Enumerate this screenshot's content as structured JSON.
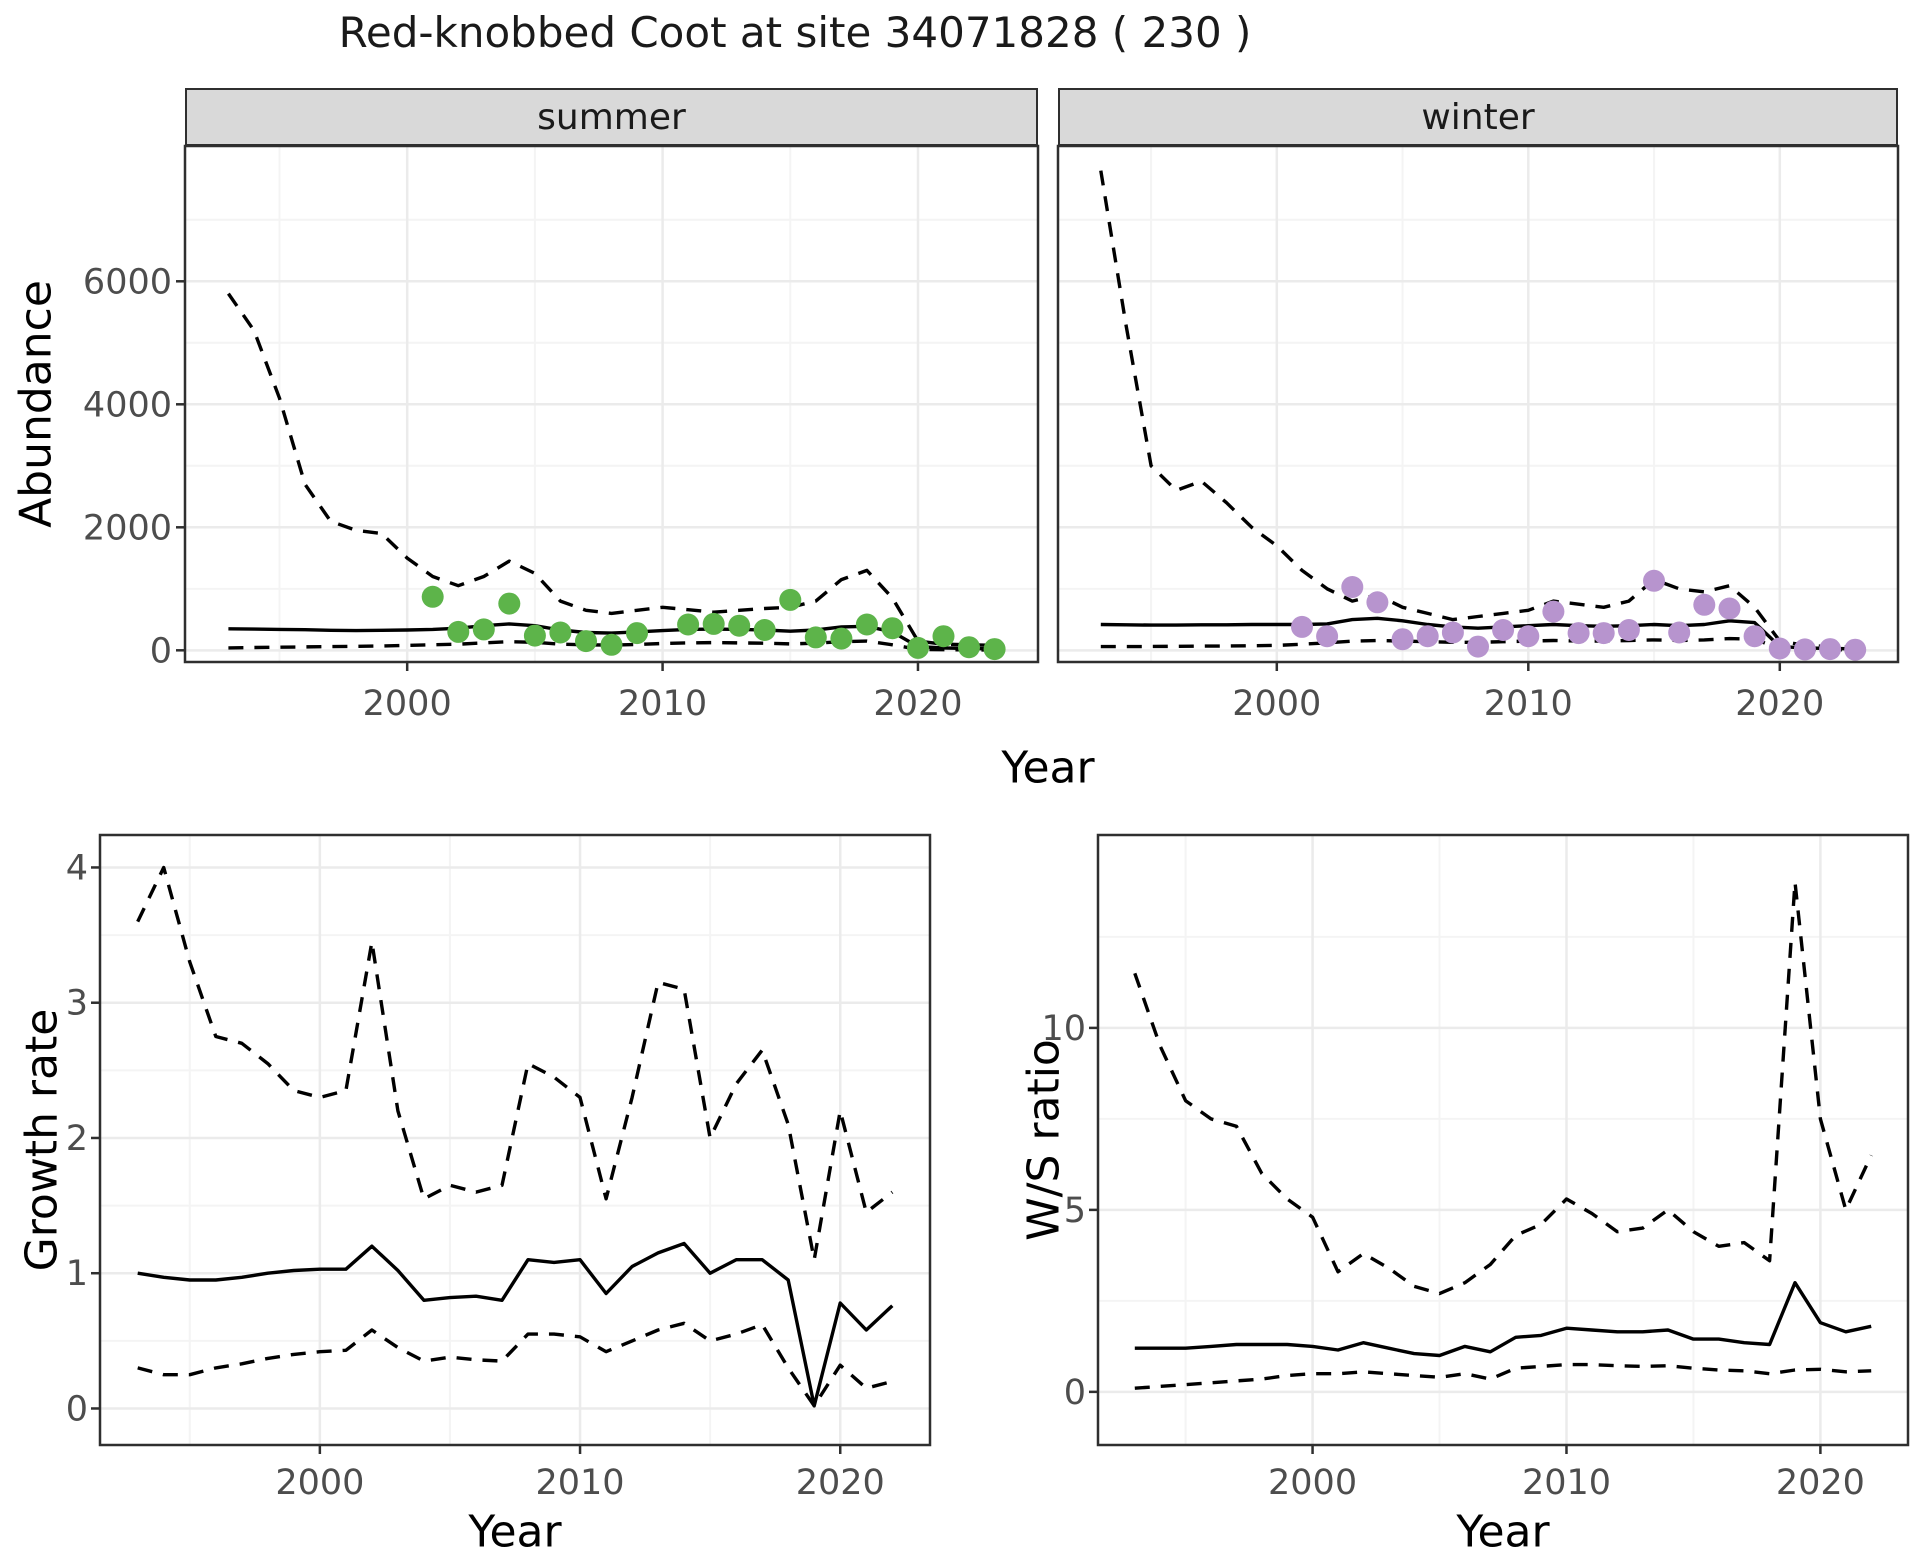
{
  "title": "Red-knobbed Coot at site 34071828 ( 230 )",
  "facets": {
    "summer_label": "summer",
    "winter_label": "winter"
  },
  "axes": {
    "abundance_label": "Abundance",
    "year_label": "Year",
    "growth_label": "Growth rate",
    "ratio_label": "W/S ratio"
  },
  "colors": {
    "summer_points": "#5db44a",
    "winter_points": "#b794ce",
    "line": "#000000",
    "grid_major": "#ebebeb",
    "grid_minor": "#f4f4f4",
    "panel_border": "#2f2f2f",
    "strip_bg": "#d9d9d9",
    "axis_text": "#4d4d4d",
    "title_text": "#1a1a1a"
  },
  "chart_data": [
    {
      "id": "summer_abundance",
      "type": "line",
      "facet": "summer",
      "xlabel": "Year",
      "ylabel": "Abundance",
      "xlim": [
        1991.3,
        2024.7
      ],
      "ylim": [
        -190,
        8200
      ],
      "xticks": {
        "values": [
          2000,
          2010,
          2020
        ],
        "labels": [
          "2000",
          "2010",
          "2020"
        ]
      },
      "yticks": {
        "values": [
          0,
          2000,
          4000,
          6000
        ],
        "labels": [
          "0",
          "2000",
          "4000",
          "6000"
        ]
      },
      "minor_x": [
        1995,
        2005,
        2015
      ],
      "minor_y": [
        1000,
        3000,
        5000,
        7000
      ],
      "x": [
        1993,
        1994,
        1995,
        1996,
        1997,
        1998,
        1999,
        2000,
        2001,
        2002,
        2003,
        2004,
        2005,
        2006,
        2007,
        2008,
        2009,
        2010,
        2011,
        2012,
        2013,
        2014,
        2015,
        2016,
        2017,
        2018,
        2019,
        2020,
        2021,
        2022,
        2023
      ],
      "series": [
        {
          "name": "upper_95ci",
          "style": "dashed",
          "values": [
            5800,
            5200,
            4100,
            2700,
            2100,
            1950,
            1900,
            1500,
            1200,
            1050,
            1200,
            1450,
            1250,
            800,
            650,
            600,
            650,
            700,
            660,
            620,
            650,
            680,
            700,
            800,
            1150,
            1300,
            850,
            150,
            100,
            90,
            80
          ]
        },
        {
          "name": "median",
          "style": "solid",
          "values": [
            350,
            345,
            340,
            335,
            325,
            320,
            325,
            330,
            340,
            360,
            400,
            430,
            400,
            330,
            290,
            280,
            300,
            320,
            340,
            345,
            340,
            330,
            310,
            330,
            380,
            390,
            300,
            60,
            40,
            30,
            25
          ]
        },
        {
          "name": "lower_95ci",
          "style": "dashed",
          "values": [
            40,
            45,
            50,
            55,
            60,
            65,
            70,
            80,
            90,
            100,
            120,
            140,
            130,
            100,
            90,
            85,
            95,
            110,
            120,
            125,
            120,
            115,
            105,
            115,
            140,
            150,
            90,
            15,
            10,
            8,
            5
          ]
        }
      ],
      "points": {
        "name": "observed_counts_summer",
        "color": "#5db44a",
        "x": [
          2001,
          2002,
          2003,
          2004,
          2005,
          2006,
          2007,
          2008,
          2009,
          2011,
          2012,
          2013,
          2014,
          2015,
          2016,
          2017,
          2018,
          2019,
          2020,
          2021,
          2022,
          2023
        ],
        "y": [
          870,
          300,
          340,
          760,
          240,
          290,
          150,
          90,
          280,
          420,
          430,
          400,
          330,
          820,
          210,
          190,
          420,
          360,
          40,
          230,
          50,
          20
        ]
      }
    },
    {
      "id": "winter_abundance",
      "type": "line",
      "facet": "winter",
      "xlabel": "Year",
      "ylabel": "Abundance",
      "xlim": [
        1991.3,
        2024.7
      ],
      "ylim": [
        -190,
        8200
      ],
      "xticks": {
        "values": [
          2000,
          2010,
          2020
        ],
        "labels": [
          "2000",
          "2010",
          "2020"
        ]
      },
      "yticks": {
        "values": [
          0,
          2000,
          4000,
          6000
        ],
        "labels": [
          "0",
          "2000",
          "4000",
          "6000"
        ]
      },
      "minor_x": [
        1995,
        2005,
        2015
      ],
      "minor_y": [
        1000,
        3000,
        5000,
        7000
      ],
      "x": [
        1993,
        1994,
        1995,
        1996,
        1997,
        1998,
        1999,
        2000,
        2001,
        2002,
        2003,
        2004,
        2005,
        2006,
        2007,
        2008,
        2009,
        2010,
        2011,
        2012,
        2013,
        2014,
        2015,
        2016,
        2017,
        2018,
        2019,
        2020,
        2021,
        2022,
        2023
      ],
      "series": [
        {
          "name": "upper_95ci",
          "style": "dashed",
          "values": [
            7800,
            5300,
            3000,
            2600,
            2750,
            2400,
            2000,
            1700,
            1300,
            1000,
            800,
            900,
            700,
            600,
            500,
            550,
            600,
            650,
            800,
            750,
            700,
            800,
            1150,
            1000,
            950,
            1050,
            700,
            150,
            80,
            60,
            50
          ]
        },
        {
          "name": "median",
          "style": "solid",
          "values": [
            420,
            415,
            410,
            410,
            415,
            415,
            420,
            420,
            420,
            430,
            500,
            520,
            480,
            420,
            380,
            360,
            380,
            400,
            420,
            400,
            390,
            400,
            420,
            400,
            420,
            480,
            450,
            60,
            40,
            30,
            25
          ]
        },
        {
          "name": "lower_95ci",
          "style": "dashed",
          "values": [
            60,
            60,
            62,
            65,
            68,
            70,
            75,
            80,
            100,
            120,
            150,
            160,
            150,
            140,
            130,
            130,
            140,
            150,
            160,
            150,
            150,
            160,
            170,
            160,
            170,
            190,
            180,
            30,
            15,
            10,
            8
          ]
        }
      ],
      "points": {
        "name": "observed_counts_winter",
        "color": "#b794ce",
        "x": [
          2001,
          2002,
          2003,
          2004,
          2005,
          2006,
          2007,
          2008,
          2009,
          2010,
          2011,
          2012,
          2013,
          2014,
          2015,
          2016,
          2017,
          2018,
          2019,
          2020,
          2021,
          2022,
          2023
        ],
        "y": [
          380,
          230,
          1030,
          780,
          180,
          230,
          290,
          60,
          330,
          230,
          630,
          280,
          280,
          330,
          1130,
          290,
          740,
          680,
          230,
          30,
          15,
          20,
          10
        ]
      }
    },
    {
      "id": "growth_rate",
      "type": "line",
      "xlabel": "Year",
      "ylabel": "Growth rate",
      "xlim": [
        1991.55,
        2023.45
      ],
      "ylim": [
        -0.27,
        4.24
      ],
      "xticks": {
        "values": [
          2000,
          2010,
          2020
        ],
        "labels": [
          "2000",
          "2010",
          "2020"
        ]
      },
      "yticks": {
        "values": [
          0,
          1,
          2,
          3,
          4
        ],
        "labels": [
          "0",
          "1",
          "2",
          "3",
          "4"
        ]
      },
      "minor_x": [
        1995,
        2005,
        2015
      ],
      "minor_y": [
        0.5,
        1.5,
        2.5,
        3.5
      ],
      "x": [
        1993,
        1994,
        1995,
        1996,
        1997,
        1998,
        1999,
        2000,
        2001,
        2002,
        2003,
        2004,
        2005,
        2006,
        2007,
        2008,
        2009,
        2010,
        2011,
        2012,
        2013,
        2014,
        2015,
        2016,
        2017,
        2018,
        2019,
        2020,
        2021,
        2022
      ],
      "series": [
        {
          "name": "upper_95ci",
          "style": "dashed",
          "values": [
            3.6,
            4.0,
            3.3,
            2.75,
            2.7,
            2.55,
            2.35,
            2.3,
            2.35,
            3.45,
            2.2,
            1.55,
            1.65,
            1.6,
            1.65,
            2.55,
            2.45,
            2.3,
            1.55,
            2.3,
            3.15,
            3.1,
            2.0,
            2.4,
            2.65,
            2.1,
            1.1,
            2.2,
            1.45,
            1.6
          ]
        },
        {
          "name": "median",
          "style": "solid",
          "values": [
            1.0,
            0.97,
            0.95,
            0.95,
            0.97,
            1.0,
            1.02,
            1.03,
            1.03,
            1.2,
            1.02,
            0.8,
            0.82,
            0.83,
            0.8,
            1.1,
            1.08,
            1.1,
            0.85,
            1.05,
            1.15,
            1.22,
            1.0,
            1.1,
            1.1,
            0.95,
            0.02,
            0.78,
            0.58,
            0.76
          ]
        },
        {
          "name": "lower_95ci",
          "style": "dashed",
          "values": [
            0.3,
            0.25,
            0.25,
            0.3,
            0.33,
            0.37,
            0.4,
            0.42,
            0.43,
            0.58,
            0.45,
            0.35,
            0.38,
            0.36,
            0.35,
            0.55,
            0.55,
            0.53,
            0.42,
            0.5,
            0.58,
            0.63,
            0.5,
            0.55,
            0.62,
            0.3,
            0.02,
            0.32,
            0.15,
            0.2
          ]
        }
      ]
    },
    {
      "id": "ws_ratio",
      "type": "line",
      "xlabel": "Year",
      "ylabel": "W/S ratio",
      "xlim": [
        1991.55,
        2023.45
      ],
      "ylim": [
        -1.46,
        15.3
      ],
      "xticks": {
        "values": [
          2000,
          2010,
          2020
        ],
        "labels": [
          "2000",
          "2010",
          "2020"
        ]
      },
      "yticks": {
        "values": [
          0,
          5,
          10
        ],
        "labels": [
          "0",
          "5",
          "10"
        ]
      },
      "minor_x": [
        1995,
        2005,
        2015
      ],
      "minor_y": [
        2.5,
        7.5,
        12.5
      ],
      "x": [
        1993,
        1994,
        1995,
        1996,
        1997,
        1998,
        1999,
        2000,
        2001,
        2002,
        2003,
        2004,
        2005,
        2006,
        2007,
        2008,
        2009,
        2010,
        2011,
        2012,
        2013,
        2014,
        2015,
        2016,
        2017,
        2018,
        2019,
        2020,
        2021,
        2022
      ],
      "series": [
        {
          "name": "upper_95ci",
          "style": "dashed",
          "values": [
            11.5,
            9.5,
            8.0,
            7.5,
            7.3,
            6.0,
            5.3,
            4.8,
            3.3,
            3.8,
            3.4,
            2.9,
            2.7,
            3.0,
            3.5,
            4.3,
            4.6,
            5.3,
            4.9,
            4.4,
            4.5,
            5.0,
            4.4,
            4.0,
            4.1,
            3.6,
            14.0,
            7.5,
            5.0,
            6.5
          ]
        },
        {
          "name": "median",
          "style": "solid",
          "values": [
            1.2,
            1.2,
            1.2,
            1.25,
            1.3,
            1.3,
            1.3,
            1.25,
            1.15,
            1.35,
            1.2,
            1.05,
            1.0,
            1.25,
            1.1,
            1.5,
            1.55,
            1.75,
            1.7,
            1.65,
            1.65,
            1.7,
            1.45,
            1.45,
            1.35,
            1.3,
            3.0,
            1.9,
            1.65,
            1.8
          ]
        },
        {
          "name": "lower_95ci",
          "style": "dashed",
          "values": [
            0.1,
            0.15,
            0.2,
            0.25,
            0.3,
            0.35,
            0.45,
            0.5,
            0.5,
            0.55,
            0.5,
            0.45,
            0.4,
            0.5,
            0.35,
            0.65,
            0.7,
            0.75,
            0.75,
            0.72,
            0.7,
            0.72,
            0.65,
            0.6,
            0.58,
            0.5,
            0.6,
            0.62,
            0.55,
            0.58
          ]
        }
      ]
    }
  ]
}
